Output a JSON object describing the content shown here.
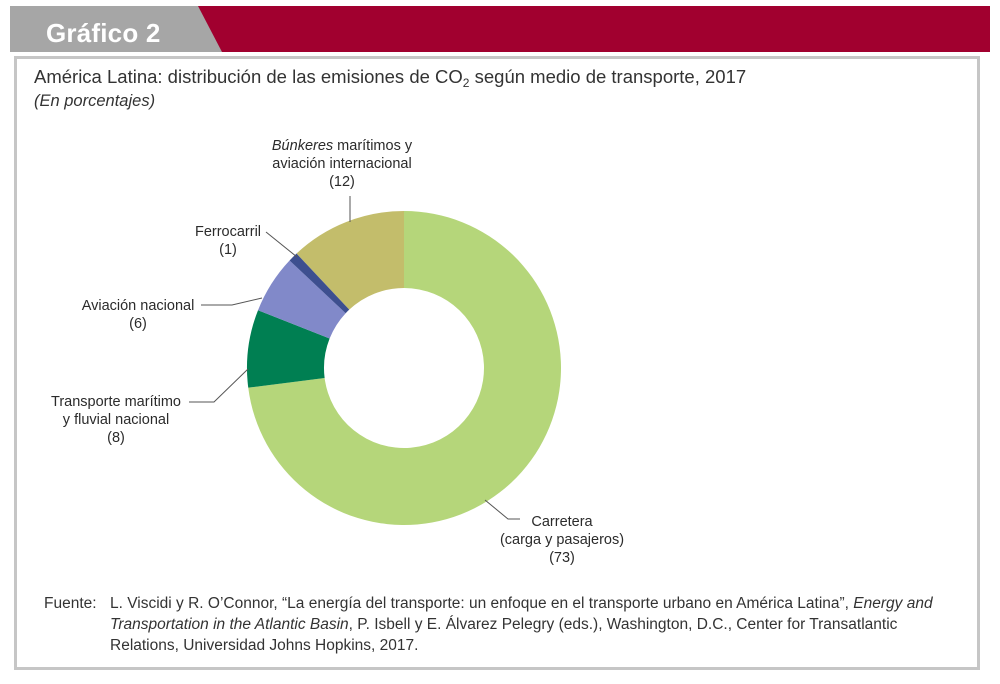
{
  "header": {
    "title": "Gráfico 2",
    "colors": {
      "grey_tab": "#a6a6a6",
      "red_band": "#a1002f"
    }
  },
  "figure": {
    "title_pre": "América Latina: distribución de las emisiones de CO",
    "title_sub": "2",
    "title_post": " según medio de transporte, 2017",
    "subtitle": "(En porcentajes)"
  },
  "chart_data": {
    "type": "pie",
    "donut": true,
    "unit": "%",
    "slices": [
      {
        "label_italic": "Búnkeres",
        "label_lines": [
          " marítimos y",
          "aviación internacional"
        ],
        "value_text": "(12)",
        "value": 12,
        "color": "#c3bd6b"
      },
      {
        "label_lines": [
          "Carretera",
          "(carga y pasajeros)"
        ],
        "value_text": "(73)",
        "value": 73,
        "color": "#b5d67a"
      },
      {
        "label_lines": [
          "Transporte marítimo",
          "y fluvial nacional"
        ],
        "value_text": "(8)",
        "value": 8,
        "color": "#007f52"
      },
      {
        "label_lines": [
          "Aviación nacional"
        ],
        "value_text": "(6)",
        "value": 6,
        "color": "#8189c9"
      },
      {
        "label_lines": [
          "Ferrocarril"
        ],
        "value_text": "(1)",
        "value": 1,
        "color": "#3d4f8f"
      }
    ]
  },
  "source": {
    "label": "Fuente:",
    "text_1": "L. Viscidi y R. O’Connor, “La energía del transporte: un enfoque en el transporte urbano en América Latina”, ",
    "text_italic": "Energy and Transportation in the Atlantic Basin",
    "text_2": ", P. Isbell y E. Álvarez Pelegry (eds.), Washington, D.C., Center for Transatlantic Relations, Universidad Johns Hopkins, 2017."
  }
}
